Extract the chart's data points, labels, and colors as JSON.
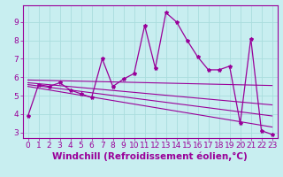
{
  "xlabel": "Windchill (Refroidissement éolien,°C)",
  "ylabel": "",
  "bg_color": "#c8eef0",
  "line_color": "#990099",
  "marker": "*",
  "xlim": [
    -0.5,
    23.5
  ],
  "ylim": [
    2.7,
    9.9
  ],
  "xticks": [
    0,
    1,
    2,
    3,
    4,
    5,
    6,
    7,
    8,
    9,
    10,
    11,
    12,
    13,
    14,
    15,
    16,
    17,
    18,
    19,
    20,
    21,
    22,
    23
  ],
  "yticks": [
    3,
    4,
    5,
    6,
    7,
    8,
    9
  ],
  "series": [
    [
      0,
      3.9
    ],
    [
      1,
      5.6
    ],
    [
      2,
      5.5
    ],
    [
      3,
      5.7
    ],
    [
      4,
      5.3
    ],
    [
      5,
      5.1
    ],
    [
      6,
      4.9
    ],
    [
      7,
      7.0
    ],
    [
      8,
      5.5
    ],
    [
      9,
      5.9
    ],
    [
      10,
      6.2
    ],
    [
      11,
      8.8
    ],
    [
      12,
      6.5
    ],
    [
      13,
      9.5
    ],
    [
      14,
      9.0
    ],
    [
      15,
      8.0
    ],
    [
      16,
      7.1
    ],
    [
      17,
      6.4
    ],
    [
      18,
      6.4
    ],
    [
      19,
      6.6
    ],
    [
      20,
      3.5
    ],
    [
      21,
      8.1
    ],
    [
      22,
      3.1
    ],
    [
      23,
      2.9
    ]
  ],
  "trend_lines": [
    {
      "x": [
        0,
        23
      ],
      "y": [
        5.85,
        5.55
      ]
    },
    {
      "x": [
        0,
        23
      ],
      "y": [
        5.7,
        4.5
      ]
    },
    {
      "x": [
        0,
        23
      ],
      "y": [
        5.6,
        3.9
      ]
    },
    {
      "x": [
        0,
        23
      ],
      "y": [
        5.5,
        3.3
      ]
    }
  ],
  "grid_color": "#aadddd",
  "tick_label_fontsize": 6.5,
  "xlabel_fontsize": 7.5
}
